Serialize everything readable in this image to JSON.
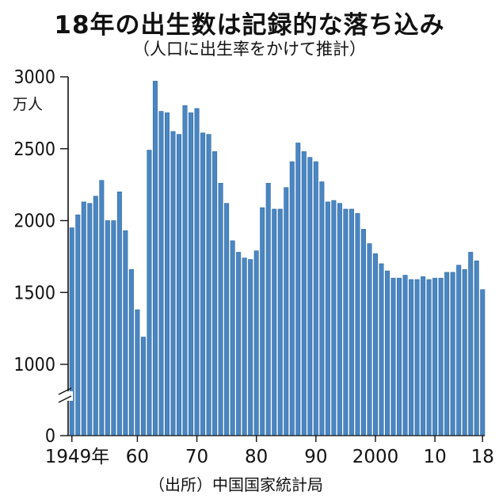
{
  "title": "18年の出生数は記録的な落ち込み",
  "subtitle": "（人口に出生率をかけて推計）",
  "unit_label": "万人",
  "source": "（出所）中国国家統計局",
  "colors": {
    "bar": "#4a86c2",
    "bar_edge": "#2f6aa3",
    "axis": "#111111"
  },
  "chart_data": {
    "type": "bar",
    "title": "18年の出生数は記録的な落ち込み",
    "subtitle": "（人口に出生率をかけて推計）",
    "ylabel": "万人",
    "ylim": [
      0,
      3000
    ],
    "axis_break": [
      0,
      1000
    ],
    "y_ticks": [
      "3000",
      "2500",
      "2000",
      "1500",
      "1000",
      "0"
    ],
    "x_tick_labels": [
      {
        "year": 1949,
        "label": "1949年"
      },
      {
        "year": 1960,
        "label": "60"
      },
      {
        "year": 1970,
        "label": "70"
      },
      {
        "year": 1980,
        "label": "80"
      },
      {
        "year": 1990,
        "label": "90"
      },
      {
        "year": 2000,
        "label": "2000"
      },
      {
        "year": 2010,
        "label": "10"
      },
      {
        "year": 2018,
        "label": "18"
      }
    ],
    "grid": false,
    "legend": "none",
    "categories": [
      1949,
      1950,
      1951,
      1952,
      1953,
      1954,
      1955,
      1956,
      1957,
      1958,
      1959,
      1960,
      1961,
      1962,
      1963,
      1964,
      1965,
      1966,
      1967,
      1968,
      1969,
      1970,
      1971,
      1972,
      1973,
      1974,
      1975,
      1976,
      1977,
      1978,
      1979,
      1980,
      1981,
      1982,
      1983,
      1984,
      1985,
      1986,
      1987,
      1988,
      1989,
      1990,
      1991,
      1992,
      1993,
      1994,
      1995,
      1996,
      1997,
      1998,
      1999,
      2000,
      2001,
      2002,
      2003,
      2004,
      2005,
      2006,
      2007,
      2008,
      2009,
      2010,
      2011,
      2012,
      2013,
      2014,
      2015,
      2016,
      2017,
      2018
    ],
    "values": [
      1950,
      2040,
      2130,
      2120,
      2170,
      2280,
      2000,
      2000,
      2200,
      1930,
      1660,
      1380,
      1190,
      2490,
      2970,
      2760,
      2750,
      2620,
      2600,
      2800,
      2750,
      2780,
      2610,
      2600,
      2480,
      2260,
      2120,
      1860,
      1780,
      1740,
      1730,
      1790,
      2090,
      2260,
      2080,
      2080,
      2230,
      2410,
      2540,
      2480,
      2440,
      2410,
      2270,
      2130,
      2140,
      2120,
      2080,
      2080,
      2050,
      1940,
      1840,
      1770,
      1700,
      1650,
      1600,
      1600,
      1620,
      1590,
      1590,
      1610,
      1590,
      1600,
      1600,
      1640,
      1640,
      1690,
      1660,
      1780,
      1720,
      1520
    ]
  }
}
